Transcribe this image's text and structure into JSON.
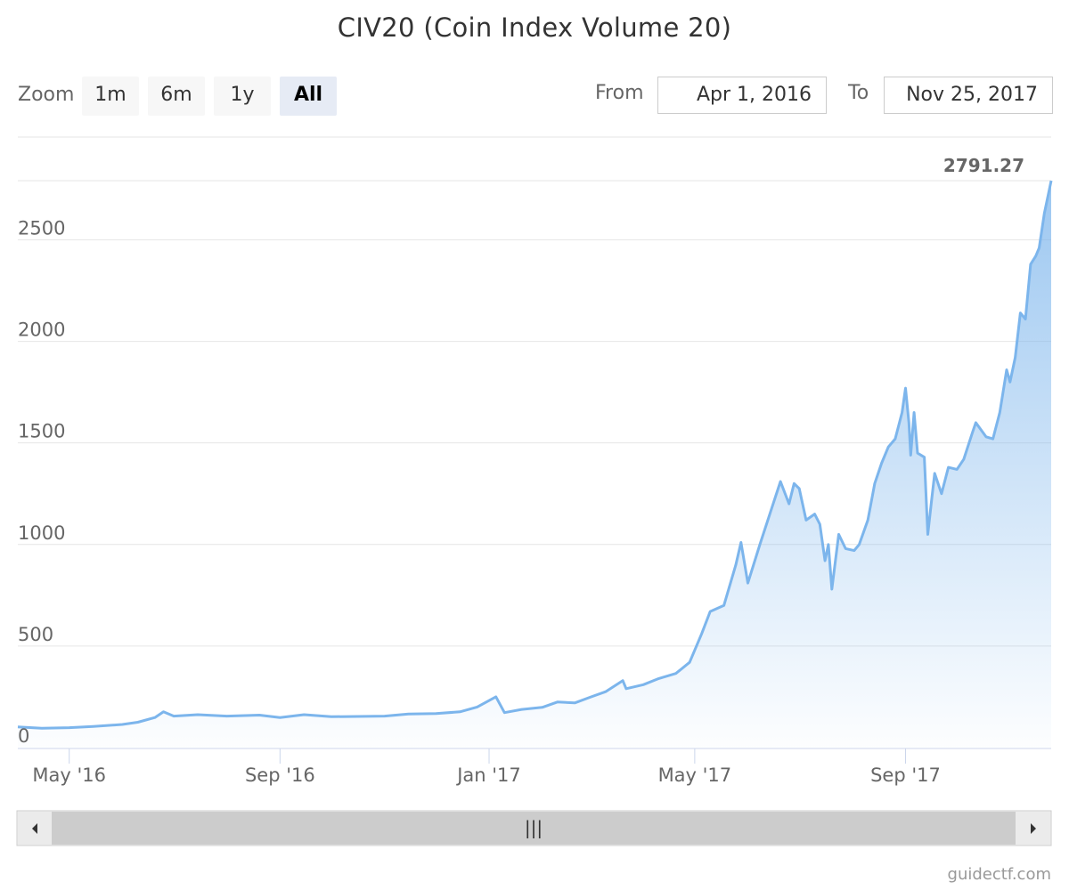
{
  "title": "CIV20 (Coin Index Volume 20)",
  "range_selector": {
    "zoom_label": "Zoom",
    "buttons": [
      {
        "label": "1m",
        "active": false
      },
      {
        "label": "6m",
        "active": false
      },
      {
        "label": "1y",
        "active": false
      },
      {
        "label": "All",
        "active": true
      }
    ],
    "from_label": "From",
    "from_value": "Apr 1, 2016",
    "to_label": "To",
    "to_value": "Nov 25, 2017"
  },
  "credit": "guidectf.com",
  "navigator": {
    "handle_glyph": "|||"
  },
  "colors": {
    "line": "#7cb5ec",
    "grid": "#e6e6e6",
    "axis": "#ccd6eb",
    "scrollbar": "#cccccc",
    "scroll_track": "#f2f2f2"
  },
  "chart_data": {
    "type": "area",
    "title": "CIV20 (Coin Index Volume 20)",
    "xlabel": "",
    "ylabel": "",
    "x_start": "2016-04-01",
    "x_end": "2017-11-25",
    "ylim": [
      0,
      2791.27
    ],
    "y_ticks": [
      0,
      500,
      1000,
      1500,
      2000,
      2500
    ],
    "x_ticks": [
      {
        "date": "2016-05-01",
        "label": "May '16"
      },
      {
        "date": "2016-09-01",
        "label": "Sep '16"
      },
      {
        "date": "2017-01-01",
        "label": "Jan '17"
      },
      {
        "date": "2017-05-01",
        "label": "May '17"
      },
      {
        "date": "2017-09-01",
        "label": "Sep '17"
      }
    ],
    "grid": true,
    "last_value_label": "2791.27",
    "series": [
      {
        "values": [
          [
            "2016-04-01",
            102
          ],
          [
            "2016-04-15",
            95
          ],
          [
            "2016-05-01",
            98
          ],
          [
            "2016-05-15",
            104
          ],
          [
            "2016-06-01",
            114
          ],
          [
            "2016-06-10",
            125
          ],
          [
            "2016-06-20",
            148
          ],
          [
            "2016-06-25",
            176
          ],
          [
            "2016-07-01",
            155
          ],
          [
            "2016-07-15",
            162
          ],
          [
            "2016-08-01",
            155
          ],
          [
            "2016-08-20",
            160
          ],
          [
            "2016-09-01",
            148
          ],
          [
            "2016-09-15",
            162
          ],
          [
            "2016-10-01",
            152
          ],
          [
            "2016-11-01",
            155
          ],
          [
            "2016-11-15",
            165
          ],
          [
            "2016-12-01",
            168
          ],
          [
            "2016-12-15",
            176
          ],
          [
            "2016-12-25",
            200
          ],
          [
            "2017-01-05",
            250
          ],
          [
            "2017-01-10",
            172
          ],
          [
            "2017-01-20",
            188
          ],
          [
            "2017-02-01",
            198
          ],
          [
            "2017-02-10",
            225
          ],
          [
            "2017-02-20",
            220
          ],
          [
            "2017-03-01",
            248
          ],
          [
            "2017-03-10",
            275
          ],
          [
            "2017-03-20",
            330
          ],
          [
            "2017-03-22",
            290
          ],
          [
            "2017-04-01",
            310
          ],
          [
            "2017-04-10",
            340
          ],
          [
            "2017-04-20",
            365
          ],
          [
            "2017-04-28",
            420
          ],
          [
            "2017-05-05",
            560
          ],
          [
            "2017-05-10",
            670
          ],
          [
            "2017-05-18",
            700
          ],
          [
            "2017-05-25",
            900
          ],
          [
            "2017-05-28",
            1010
          ],
          [
            "2017-06-01",
            810
          ],
          [
            "2017-06-08",
            1000
          ],
          [
            "2017-06-15",
            1180
          ],
          [
            "2017-06-20",
            1310
          ],
          [
            "2017-06-25",
            1200
          ],
          [
            "2017-06-28",
            1300
          ],
          [
            "2017-07-01",
            1275
          ],
          [
            "2017-07-05",
            1120
          ],
          [
            "2017-07-10",
            1150
          ],
          [
            "2017-07-13",
            1100
          ],
          [
            "2017-07-16",
            920
          ],
          [
            "2017-07-18",
            1000
          ],
          [
            "2017-07-20",
            780
          ],
          [
            "2017-07-24",
            1050
          ],
          [
            "2017-07-28",
            980
          ],
          [
            "2017-08-02",
            970
          ],
          [
            "2017-08-05",
            1000
          ],
          [
            "2017-08-10",
            1120
          ],
          [
            "2017-08-14",
            1300
          ],
          [
            "2017-08-18",
            1400
          ],
          [
            "2017-08-22",
            1480
          ],
          [
            "2017-08-26",
            1520
          ],
          [
            "2017-08-30",
            1650
          ],
          [
            "2017-09-01",
            1770
          ],
          [
            "2017-09-03",
            1600
          ],
          [
            "2017-09-04",
            1440
          ],
          [
            "2017-09-06",
            1650
          ],
          [
            "2017-09-08",
            1450
          ],
          [
            "2017-09-12",
            1430
          ],
          [
            "2017-09-14",
            1050
          ],
          [
            "2017-09-16",
            1200
          ],
          [
            "2017-09-18",
            1350
          ],
          [
            "2017-09-22",
            1250
          ],
          [
            "2017-09-26",
            1380
          ],
          [
            "2017-10-01",
            1370
          ],
          [
            "2017-10-05",
            1420
          ],
          [
            "2017-10-10",
            1550
          ],
          [
            "2017-10-12",
            1600
          ],
          [
            "2017-10-18",
            1530
          ],
          [
            "2017-10-22",
            1520
          ],
          [
            "2017-10-26",
            1650
          ],
          [
            "2017-10-30",
            1860
          ],
          [
            "2017-11-01",
            1800
          ],
          [
            "2017-11-04",
            1920
          ],
          [
            "2017-11-07",
            2140
          ],
          [
            "2017-11-10",
            2110
          ],
          [
            "2017-11-13",
            2380
          ],
          [
            "2017-11-16",
            2420
          ],
          [
            "2017-11-18",
            2460
          ],
          [
            "2017-11-21",
            2630
          ],
          [
            "2017-11-25",
            2791.27
          ]
        ]
      }
    ]
  }
}
